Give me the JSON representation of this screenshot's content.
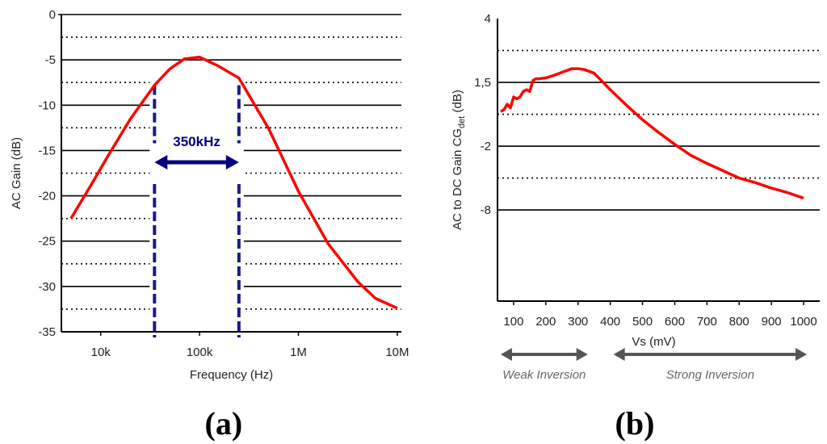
{
  "chart_data": [
    {
      "id": "a",
      "type": "line",
      "panel_label": "a",
      "xlabel": "Frequency (Hz)",
      "ylabel": "AC Gain (dB)",
      "xscale": "log",
      "xlim": [
        4000,
        11000000
      ],
      "ylim": [
        -35,
        0
      ],
      "x_ticks": [
        {
          "value": 10000,
          "label": "10k"
        },
        {
          "value": 100000,
          "label": "100k"
        },
        {
          "value": 1000000,
          "label": "1M"
        },
        {
          "value": 10000000,
          "label": "10M"
        }
      ],
      "y_ticks": [
        {
          "value": 0,
          "label": "0"
        },
        {
          "value": -5,
          "label": "-5"
        },
        {
          "value": -10,
          "label": "-10"
        },
        {
          "value": -15,
          "label": "-15"
        },
        {
          "value": -20,
          "label": "-20"
        },
        {
          "value": -25,
          "label": "-25"
        },
        {
          "value": -30,
          "label": "-30"
        },
        {
          "value": -35,
          "label": "-35"
        }
      ],
      "solid_gridlines": [
        -5,
        -10,
        -15,
        -20,
        -25,
        -30
      ],
      "dotted_gridlines": [
        -2.5,
        -7.5,
        -12.5,
        -17.5,
        -22.5,
        -27.5,
        -32.5
      ],
      "series": [
        {
          "name": "AC Gain",
          "color": "#ff0000",
          "x": [
            5000,
            8000,
            12000,
            20000,
            35000,
            50000,
            70000,
            100000,
            150000,
            250000,
            500000,
            1000000,
            2000000,
            4000000,
            6000000,
            10000000
          ],
          "y": [
            -22.5,
            -18.8,
            -15.5,
            -11.5,
            -7.8,
            -6.0,
            -4.9,
            -4.7,
            -5.6,
            -7.0,
            -12.6,
            -19.5,
            -25.3,
            -29.5,
            -31.3,
            -32.4
          ]
        }
      ],
      "annotation": {
        "text": "350kHz",
        "color": "#000080",
        "bandwidth_markers_hz": [
          35000,
          250000
        ],
        "arrow_level_db": -16.3
      }
    },
    {
      "id": "b",
      "type": "line",
      "panel_label": "b",
      "xlabel": "Vs (mV)",
      "ylabel_main": "AC to DC  Gain CG",
      "ylabel_sub": "det",
      "ylabel_suffix": " (dB)",
      "xlim": [
        50,
        1050
      ],
      "ylim": [
        -11.5,
        4
      ],
      "x_ticks": [
        {
          "value": 100,
          "label": "100"
        },
        {
          "value": 200,
          "label": "200"
        },
        {
          "value": 300,
          "label": "300"
        },
        {
          "value": 400,
          "label": "400"
        },
        {
          "value": 500,
          "label": "500"
        },
        {
          "value": 600,
          "label": "600"
        },
        {
          "value": 700,
          "label": "700"
        },
        {
          "value": 800,
          "label": "800"
        },
        {
          "value": 900,
          "label": "900"
        },
        {
          "value": 1000,
          "label": "1000"
        }
      ],
      "y_ticks": [
        {
          "value": 4,
          "label": "4"
        },
        {
          "value": 1.5,
          "label": "1,5"
        },
        {
          "value": -2,
          "label": "-2"
        },
        {
          "value": -8,
          "label": "-8"
        }
      ],
      "y_tick_positions": [
        4,
        0.5,
        -3,
        -6.5
      ],
      "solid_gridlines": [
        0.5,
        -3,
        -6.5
      ],
      "dotted_gridlines": [
        2.25,
        -1.25,
        -4.75
      ],
      "series": [
        {
          "name": "AC to DC Gain",
          "color": "#ff0000",
          "x": [
            60,
            70,
            80,
            90,
            100,
            110,
            120,
            130,
            140,
            150,
            160,
            170,
            180,
            200,
            220,
            250,
            280,
            300,
            320,
            350,
            400,
            450,
            500,
            550,
            600,
            650,
            700,
            750,
            800,
            850,
            900,
            950,
            1000
          ],
          "y": [
            -1.1,
            -1.0,
            -0.7,
            -0.9,
            -0.3,
            -0.4,
            -0.3,
            0.0,
            0.1,
            0.0,
            0.6,
            0.7,
            0.7,
            0.75,
            0.85,
            1.05,
            1.25,
            1.25,
            1.2,
            1.0,
            0.1,
            -0.75,
            -1.55,
            -2.25,
            -2.9,
            -3.5,
            -3.95,
            -4.35,
            -4.75,
            -5.0,
            -5.3,
            -5.55,
            -5.85
          ]
        }
      ],
      "regions": [
        {
          "label": "Weak Inversion",
          "x_start": 60,
          "x_end": 330
        },
        {
          "label": "Strong Inversion",
          "x_start": 410,
          "x_end": 1010
        }
      ],
      "region_arrow_color": "#555555"
    }
  ]
}
